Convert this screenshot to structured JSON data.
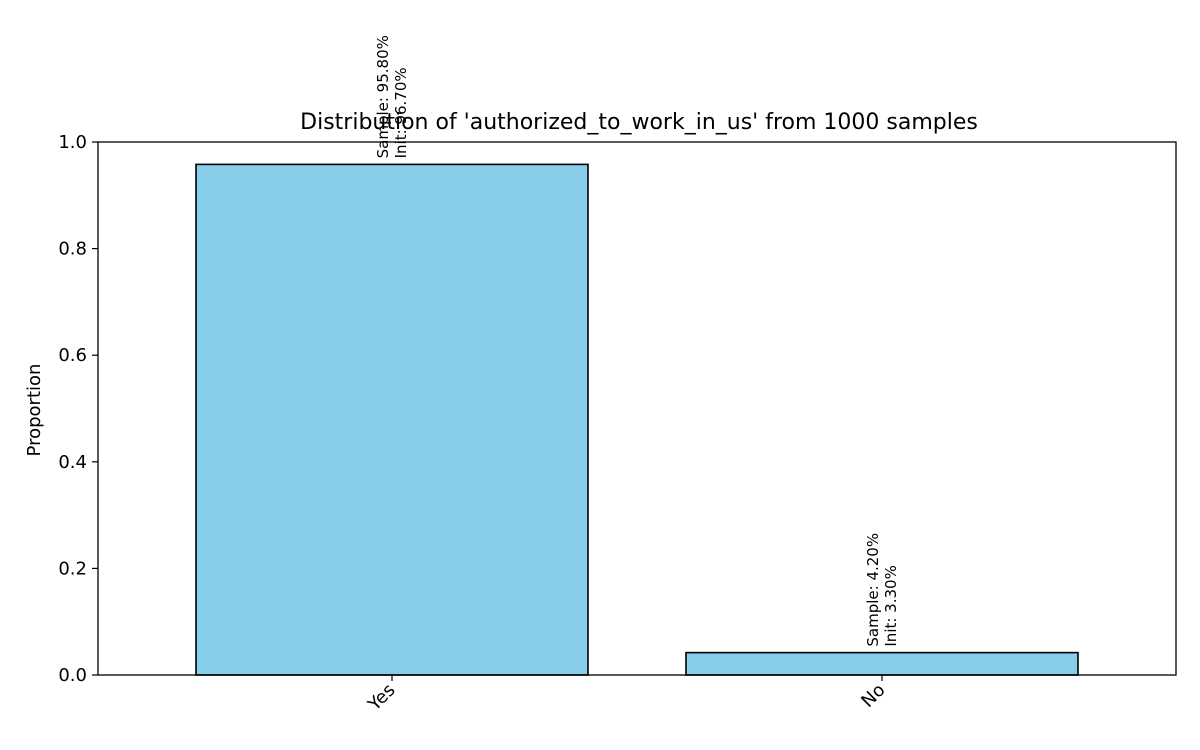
{
  "chart_data": {
    "type": "bar",
    "title": "Distribution of 'authorized_to_work_in_us' from 1000 samples",
    "xlabel": "",
    "ylabel": "Proportion",
    "ylim": [
      0,
      1.0
    ],
    "yticks": [
      "0.0",
      "0.2",
      "0.4",
      "0.6",
      "0.8",
      "1.0"
    ],
    "categories": [
      "Yes",
      "No"
    ],
    "values": [
      0.958,
      0.042
    ],
    "labels": [
      [
        "Sample: 95.80%",
        "Init: 96.70%"
      ],
      [
        "Sample: 4.20%",
        "Init: 3.30%"
      ]
    ],
    "bar_color": "#87CEEB",
    "edge_color": "#000000",
    "grid": false,
    "legend": "none"
  }
}
